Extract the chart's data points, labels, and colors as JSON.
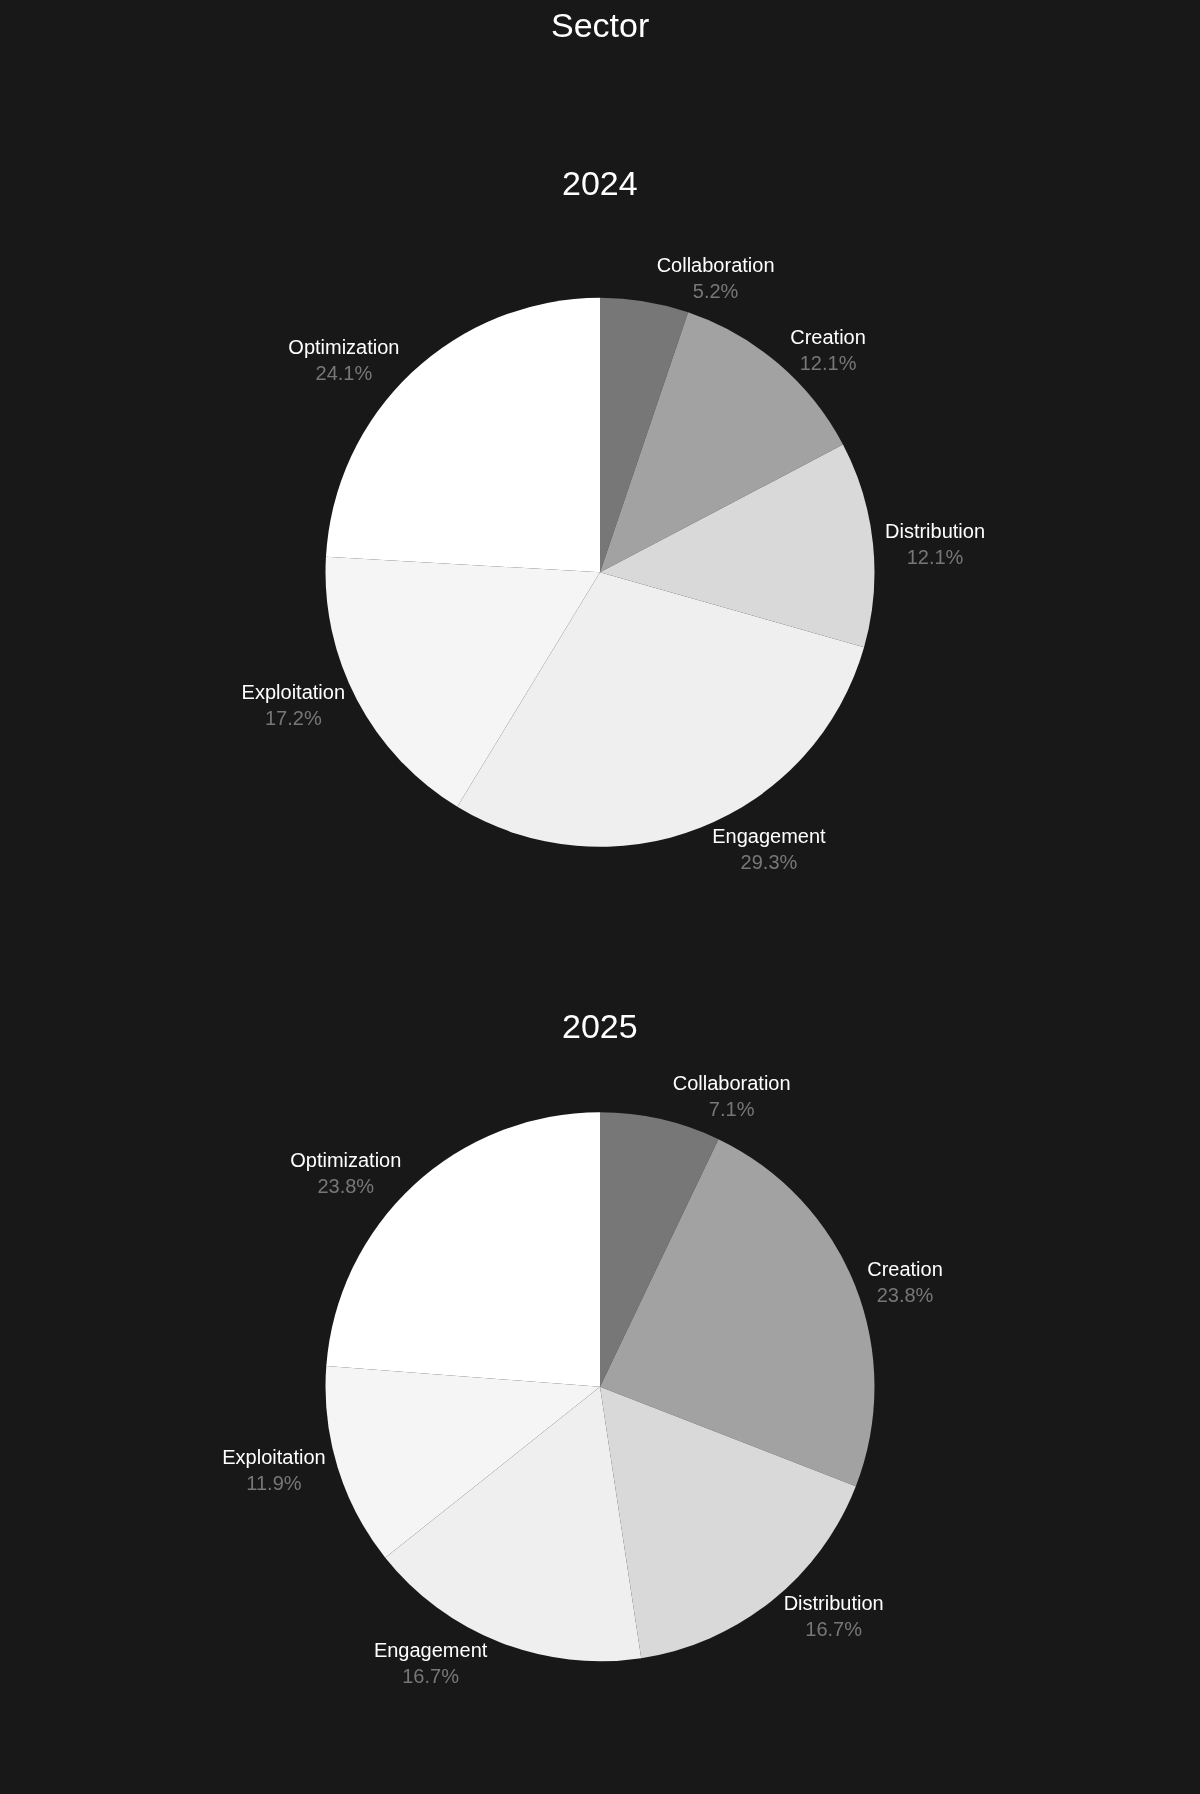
{
  "chart_data": [
    {
      "type": "pie",
      "title": "Sector",
      "subtitle": "2024",
      "categories": [
        "Collaboration",
        "Creation",
        "Distribution",
        "Engagement",
        "Exploitation",
        "Optimization"
      ],
      "values": [
        5.2,
        12.1,
        12.1,
        29.3,
        17.2,
        24.1
      ],
      "value_labels": [
        "5.2%",
        "12.1%",
        "12.1%",
        "29.3%",
        "17.2%",
        "24.1%"
      ],
      "colors": [
        "#777777",
        "#a2a2a2",
        "#d9d9d9",
        "#efefef",
        "#f5f5f5",
        "#ffffff"
      ]
    },
    {
      "type": "pie",
      "title": "2025",
      "categories": [
        "Collaboration",
        "Creation",
        "Distribution",
        "Engagement",
        "Exploitation",
        "Optimization"
      ],
      "values": [
        7.1,
        23.8,
        16.7,
        16.7,
        11.9,
        23.8
      ],
      "value_labels": [
        "7.1%",
        "23.8%",
        "16.7%",
        "16.7%",
        "11.9%",
        "23.8%"
      ],
      "colors": [
        "#777777",
        "#a2a2a2",
        "#d9d9d9",
        "#efefef",
        "#f5f5f5",
        "#ffffff"
      ]
    }
  ]
}
